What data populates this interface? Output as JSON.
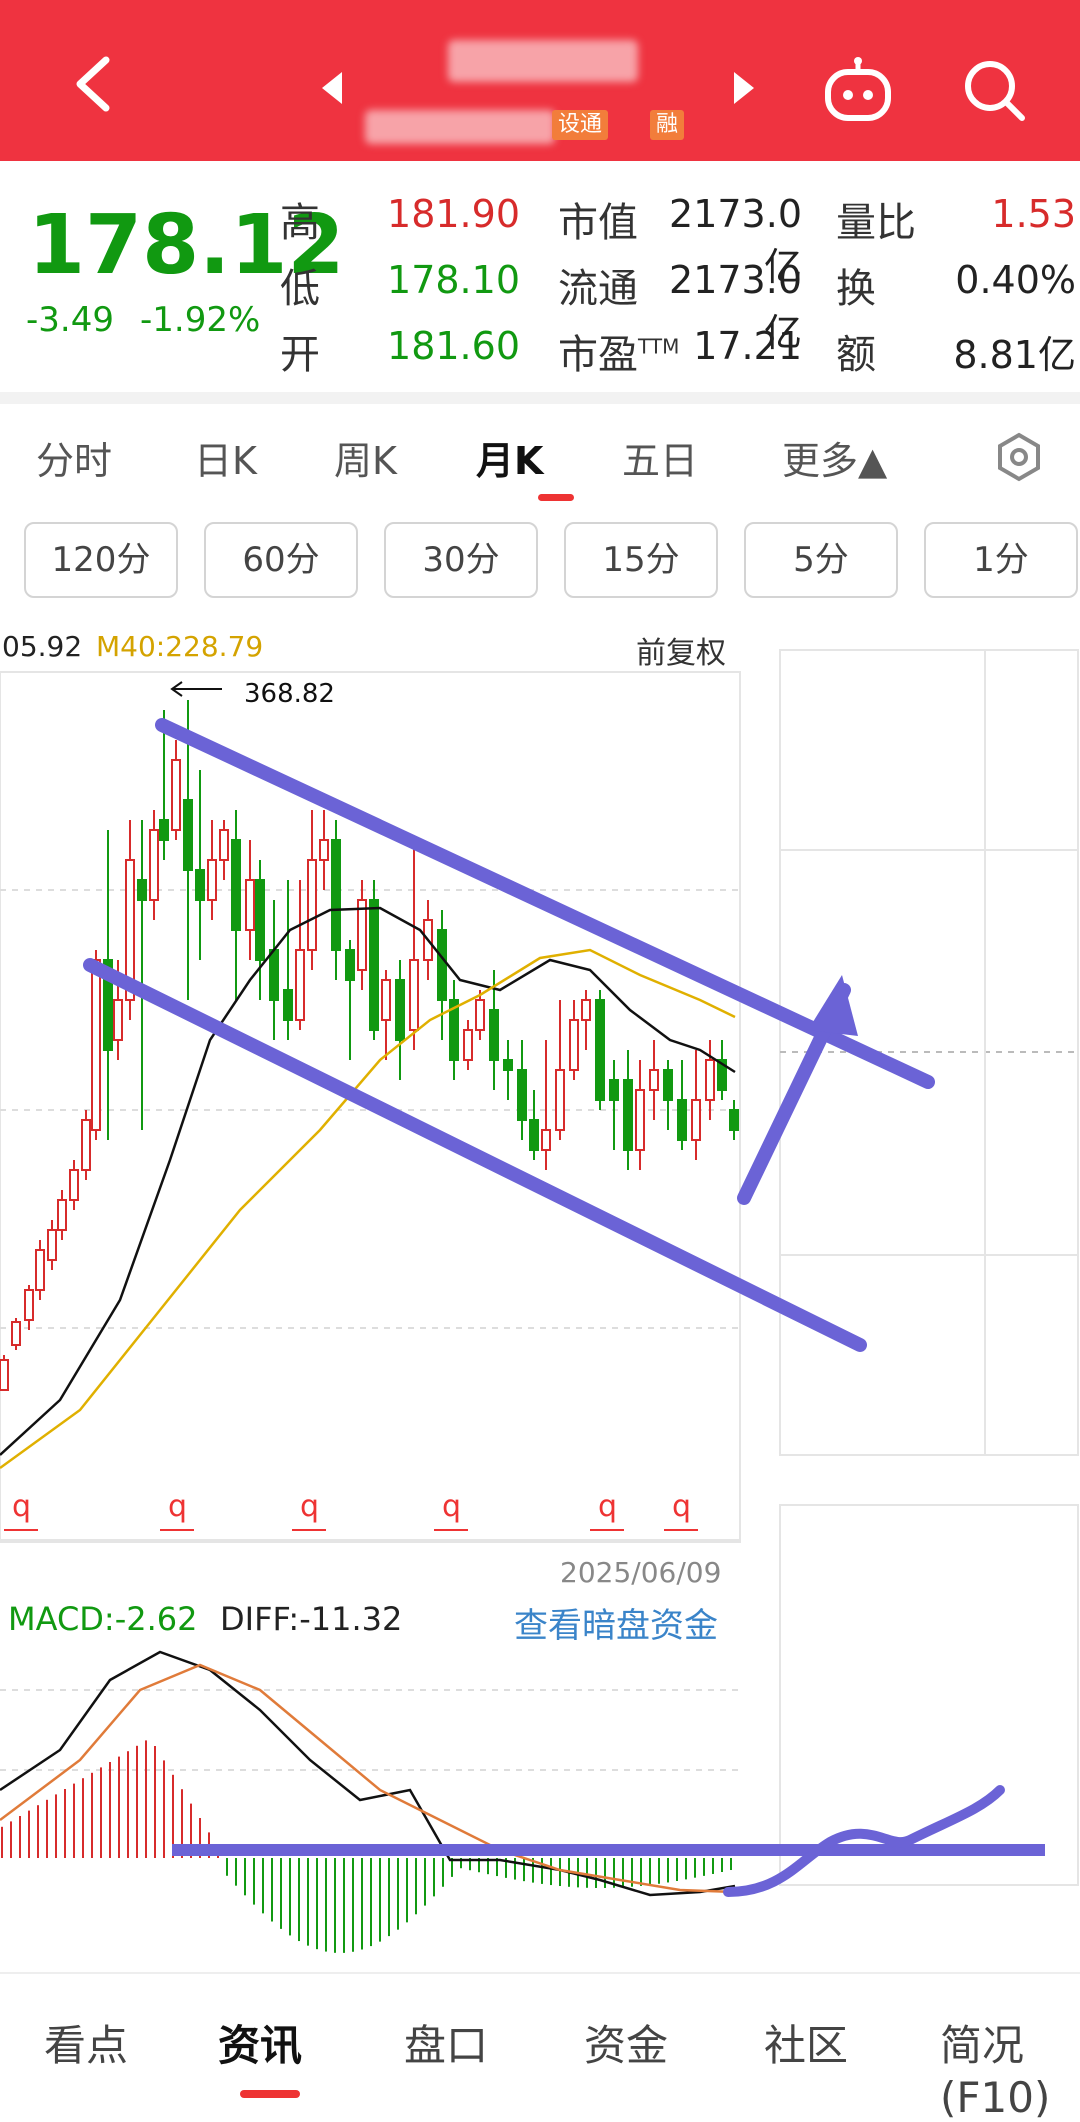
{
  "header": {
    "tags": [
      "设通",
      "融"
    ]
  },
  "quote": {
    "price": "178.12",
    "change": "-3.49",
    "change_pct": "-1.92%",
    "rows": [
      {
        "l1": "高",
        "v1": "181.90",
        "c1": "red",
        "l2": "市值",
        "v2": "2173.0亿",
        "l3": "量比",
        "v3": "1.53",
        "c3": "red"
      },
      {
        "l1": "低",
        "v1": "178.10",
        "c1": "green",
        "l2": "流通",
        "v2": "2173.0亿",
        "l3": "换",
        "v3": "0.40%",
        "c3": "dark"
      },
      {
        "l1": "开",
        "v1": "181.60",
        "c1": "green",
        "l2": "市盈TTM",
        "v2": "17.21",
        "l3": "额",
        "v3": "8.81亿",
        "c3": "dark"
      }
    ]
  },
  "period_tabs": [
    "分时",
    "日K",
    "周K",
    "月K",
    "五日",
    "更多▲"
  ],
  "active_period": "月K",
  "minute_buttons": [
    "120分",
    "60分",
    "30分",
    "15分",
    "5分",
    "1分"
  ],
  "chart": {
    "ma_left": "05.92",
    "ma40": "M40:228.79",
    "adjust": "前复权",
    "max_label": "368.82",
    "date": "2025/06/09",
    "macd": "MACD:-2.62",
    "diff": "DIFF:-11.32",
    "dark_pool": "查看暗盘资金",
    "marker_glyph": "q"
  },
  "chart_data": {
    "type": "candlestick",
    "period": "monthly",
    "max_high": 368.82,
    "last_date": "2025/06/09",
    "indicators": {
      "M40": 228.79,
      "MACD": -2.62,
      "DIFF": -11.32
    }
  },
  "bottom_nav": [
    "看点",
    "资讯",
    "盘口",
    "资金",
    "社区",
    "简况(F10)"
  ],
  "active_nav": "资讯",
  "colors": {
    "header": "#ef3340",
    "up": "#d72b2b",
    "down": "#119911",
    "annotation": "#6b63d6",
    "ma": "#111111",
    "ma40": "#e0b000"
  },
  "icons": {
    "back": "back-arrow-icon",
    "prev": "prev-stock-icon",
    "next": "next-stock-icon",
    "robot": "robot-icon",
    "search": "search-icon",
    "settings": "hexagon-settings-icon"
  }
}
